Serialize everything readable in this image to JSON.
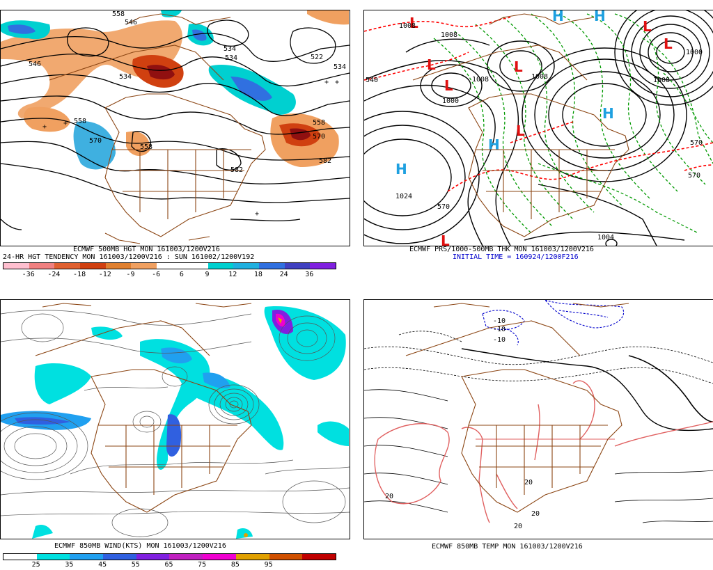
{
  "panels": {
    "p500": {
      "caption_line1": "ECMWF 500MB HGT MON 161003/1200V216",
      "caption_line2": "24-HR HGT TENDENCY MON 161003/1200V216 : SUN 161002/1200V192",
      "contour_labels": [
        "558",
        "546",
        "534",
        "546",
        "534",
        "534",
        "522",
        "534",
        "558",
        "570",
        "558",
        "570",
        "582",
        "582",
        "558"
      ],
      "colorbar": {
        "colors": [
          "#ffbfcf",
          "#f08080",
          "#e06030",
          "#d04010",
          "#e08030",
          "#f0a060",
          "#ffffff",
          "#ffffff",
          "#00d0d0",
          "#20b0e0",
          "#3070e0",
          "#4040c0",
          "#8020e0"
        ],
        "ticks": [
          "-36",
          "-24",
          "-18",
          "-12",
          "-9",
          "-6",
          "6",
          "9",
          "12",
          "18",
          "24",
          "36"
        ]
      }
    },
    "pmslp": {
      "caption_line1": "ECMWF PRS/1000-500MB THK MON 161003/1200V216",
      "caption_line2": "INITIAL TIME = 160924/1200F216",
      "contour_labels": [
        "1008",
        "1008",
        "1000",
        "1024",
        "570",
        "540",
        "1008",
        "1008",
        "1008",
        "1000",
        "570",
        "570",
        "1004"
      ],
      "high_label": "H",
      "low_label": "L"
    },
    "p850wind": {
      "caption_line1": "ECMWF 850MB WIND(KTS) MON 161003/1200V216",
      "colorbar": {
        "colors": [
          "#ffffff",
          "#00e0e0",
          "#20a0f0",
          "#3060e0",
          "#8020e0",
          "#c020c0",
          "#f000d0",
          "#e0a000",
          "#d05000",
          "#c00000"
        ],
        "ticks": [
          "25",
          "35",
          "45",
          "55",
          "65",
          "75",
          "85",
          "95"
        ]
      }
    },
    "p850temp": {
      "caption_line1": "ECMWF 850MB TEMP MON 161003/1200V216",
      "contour_labels": [
        "-10",
        "-10",
        "-10",
        "20",
        "20",
        "20",
        "20"
      ]
    }
  },
  "colors": {
    "map_outline": "#8b4513",
    "height_contour": "#000000",
    "thickness_contour": "#ff0000",
    "green_contour": "#009900",
    "high_marker": "#1ea0e0",
    "low_marker": "#e01010",
    "cold_contour": "#0000cc",
    "warm_contour": "#e06060",
    "caption_blue": "#0000cc"
  }
}
